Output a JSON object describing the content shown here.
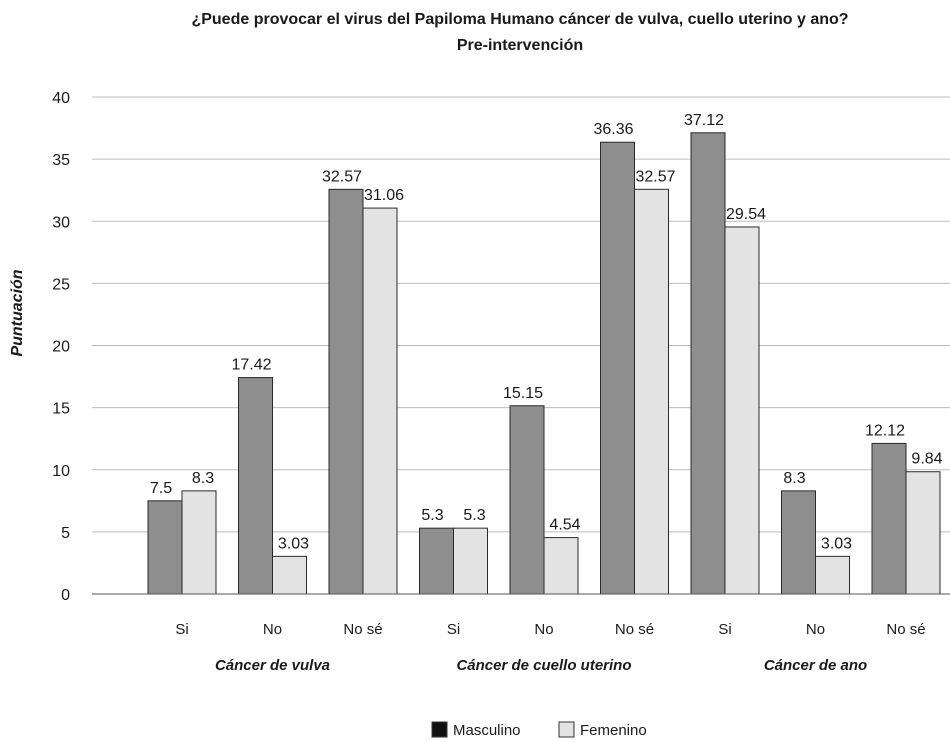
{
  "chart_data": {
    "type": "bar",
    "title": "¿Puede provocar el virus del Papiloma Humano cáncer de vulva, cuello uterino y ano?",
    "subtitle": "Pre-intervención",
    "ylabel": "Puntuación",
    "ylim": [
      0,
      40
    ],
    "yticks": [
      "0",
      "5",
      "10",
      "15",
      "20",
      "25",
      "30",
      "35",
      "40"
    ],
    "grid": true,
    "legend_position": "bottom-center",
    "groups": [
      {
        "label": "Cáncer de vulva",
        "categories": [
          "Si",
          "No",
          "No sé"
        ]
      },
      {
        "label": "Cáncer de cuello uterino",
        "categories": [
          "Si",
          "No",
          "No sé"
        ]
      },
      {
        "label": "Cáncer de ano",
        "categories": [
          "Si",
          "No",
          "No sé"
        ]
      }
    ],
    "categories": [
      "Si",
      "No",
      "No sé",
      "Si",
      "No",
      "No sé",
      "Si",
      "No",
      "No sé"
    ],
    "series": [
      {
        "name": "Masculino",
        "color": "#8e8e8e",
        "values": [
          7.5,
          17.42,
          32.57,
          5.3,
          15.15,
          36.36,
          37.12,
          8.3,
          12.12
        ],
        "labels": [
          "7.5",
          "17.42",
          "32.57",
          "5.3",
          "15.15",
          "36.36",
          "37.12",
          "8.3",
          "12.12"
        ]
      },
      {
        "name": "Femenino",
        "color": "#e3e3e3",
        "values": [
          8.3,
          3.03,
          31.06,
          5.3,
          4.54,
          32.57,
          29.54,
          3.03,
          9.84
        ],
        "labels": [
          "8.3",
          "3.03",
          "31.06",
          "5.3",
          "4.54",
          "32.57",
          "29.54",
          "3.03",
          "9.84"
        ]
      }
    ],
    "legend": [
      {
        "name": "Masculino",
        "color": "#111111"
      },
      {
        "name": "Femenino",
        "color": "#e3e3e3"
      }
    ]
  }
}
